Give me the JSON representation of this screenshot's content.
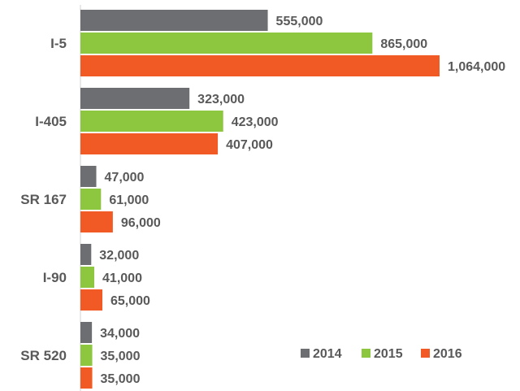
{
  "chart_data": {
    "type": "bar",
    "orientation": "horizontal",
    "categories": [
      "I-5",
      "I-405",
      "SR 167",
      "I-90",
      "SR 520"
    ],
    "series": [
      {
        "name": "2014",
        "color": "#6d6e71",
        "values": [
          555000,
          323000,
          47000,
          32000,
          34000
        ],
        "labels": [
          "555,000",
          "323,000",
          "47,000",
          "32,000",
          "34,000"
        ]
      },
      {
        "name": "2015",
        "color": "#8dc63f",
        "values": [
          865000,
          423000,
          61000,
          41000,
          35000
        ],
        "labels": [
          "865,000",
          "423,000",
          "61,000",
          "41,000",
          "35,000"
        ]
      },
      {
        "name": "2016",
        "color": "#f15a24",
        "values": [
          1064000,
          407000,
          96000,
          65000,
          35000
        ],
        "labels": [
          "1,064,000",
          "407,000",
          "96,000",
          "65,000",
          "35,000"
        ]
      }
    ],
    "legend": "bottom-right",
    "grid": false
  }
}
